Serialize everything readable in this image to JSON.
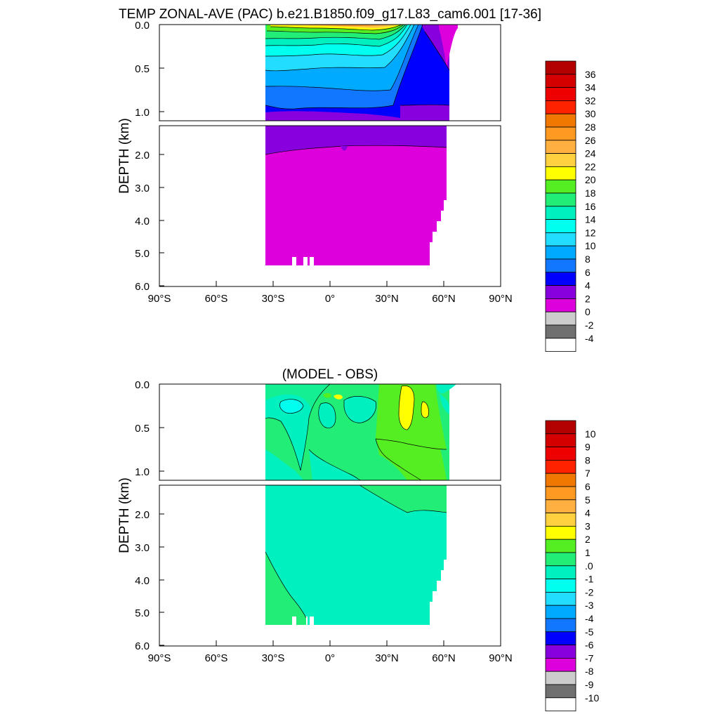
{
  "chart_data": [
    {
      "type": "heatmap",
      "title": "TEMP ZONAL-AVE (PAC) b.e21.B1850.f09_g17.L83_cam6.001 [17-36]",
      "ylabel": "DEPTH (km)",
      "xlabel": "",
      "x_ticks": [
        "90°S",
        "60°S",
        "30°S",
        "0°",
        "30°N",
        "60°N",
        "90°N"
      ],
      "x_tick_values": [
        -90,
        -60,
        -30,
        0,
        30,
        60,
        90
      ],
      "y_ticks_upper": [
        "0.0",
        "0.5",
        "1.0"
      ],
      "y_ticks_upper_values": [
        0,
        0.5,
        1.0
      ],
      "y_ticks_lower": [
        "2.0",
        "3.0",
        "4.0",
        "5.0",
        "6.0"
      ],
      "y_ticks_lower_values": [
        2,
        3,
        4,
        5,
        6
      ],
      "xlim": [
        -90,
        90
      ],
      "ylim_upper": [
        0,
        1.1
      ],
      "ylim_lower": [
        1.1,
        6.0
      ],
      "colorbar_labels": [
        "36",
        "34",
        "32",
        "30",
        "28",
        "26",
        "24",
        "22",
        "20",
        "18",
        "16",
        "14",
        "12",
        "10",
        "8",
        "6",
        "4",
        "2",
        "0",
        "-2",
        "-4"
      ],
      "colorbar_colors": [
        "#b30000",
        "#d40000",
        "#ee0000",
        "#ff2200",
        "#f07800",
        "#ff9922",
        "#ffb040",
        "#ffd040",
        "#ffff00",
        "#55ee22",
        "#22ee77",
        "#00f0c0",
        "#00ffee",
        "#22ddff",
        "#00aaff",
        "#1177ff",
        "#0000ff",
        "#8800dd",
        "#dd00dd",
        "#cccccc",
        "#707070",
        "#ffffff"
      ]
    },
    {
      "type": "heatmap",
      "title": "(MODEL - OBS)",
      "ylabel": "DEPTH (km)",
      "xlabel": "",
      "x_ticks": [
        "90°S",
        "60°S",
        "30°S",
        "0°",
        "30°N",
        "60°N",
        "90°N"
      ],
      "x_tick_values": [
        -90,
        -60,
        -30,
        0,
        30,
        60,
        90
      ],
      "y_ticks_upper": [
        "0.0",
        "0.5",
        "1.0"
      ],
      "y_ticks_upper_values": [
        0,
        0.5,
        1.0
      ],
      "y_ticks_lower": [
        "2.0",
        "3.0",
        "4.0",
        "5.0",
        "6.0"
      ],
      "y_ticks_lower_values": [
        2,
        3,
        4,
        5,
        6
      ],
      "xlim": [
        -90,
        90
      ],
      "ylim_upper": [
        0,
        1.1
      ],
      "ylim_lower": [
        1.1,
        6.0
      ],
      "colorbar_labels": [
        "10",
        "9",
        "8",
        "7",
        "6",
        "5",
        "4",
        "3",
        "2",
        "1",
        ".0",
        "-1",
        "-2",
        "-3",
        "-4",
        "-5",
        "-6",
        "-7",
        "-8",
        "-9",
        "-10"
      ],
      "colorbar_colors": [
        "#b30000",
        "#d40000",
        "#ee0000",
        "#ff2200",
        "#f07800",
        "#ff9922",
        "#ffb040",
        "#ffd040",
        "#ffff00",
        "#55ee22",
        "#22ee77",
        "#00f0c0",
        "#00ffee",
        "#22ddff",
        "#00aaff",
        "#1177ff",
        "#0000ff",
        "#8800dd",
        "#dd00dd",
        "#cccccc",
        "#707070",
        "#ffffff"
      ]
    }
  ]
}
